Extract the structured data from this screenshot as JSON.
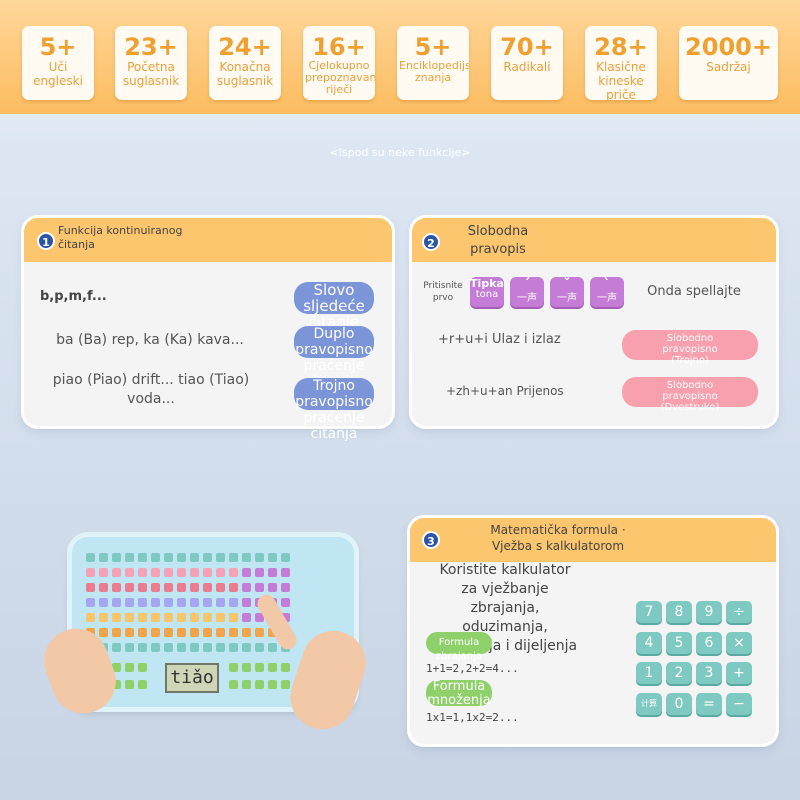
{
  "stats": [
    {
      "num": "5+",
      "label": "Uči engleski"
    },
    {
      "num": "23+",
      "label": "Početna suglasnik"
    },
    {
      "num": "24+",
      "label": "Konačna suglasnik"
    },
    {
      "num": "16+",
      "label": "Cjelokupno prepoznavanje riječi"
    },
    {
      "num": "5+",
      "label": "Enciklopedijsko znanja"
    },
    {
      "num": "70+",
      "label": "Radikali"
    },
    {
      "num": "28+",
      "label": "Klasične kineske priče"
    },
    {
      "num": "2000+",
      "label": "Sadržaj"
    }
  ],
  "caption": "<Ispod su neke funkcije>",
  "card1": {
    "number": "1",
    "title": "Funkcija kontinuiranog čitanja",
    "rows": [
      "b,p,m,f...",
      "ba (Ba) rep, ka (Ka) kava...",
      "piao (Piao) drift... tiao (Tiao) voda..."
    ],
    "buttons": [
      "Slovo sljedeće čitanje",
      "Duplo pravopisno praćenje čitanja",
      "Trojno pravopisno praćenje čitanja"
    ]
  },
  "card2": {
    "number": "2",
    "title": "Slobodna pravopis",
    "press_first": "Pritisnite prvo",
    "tones": [
      {
        "mark": "Tipka",
        "label": "tona"
      },
      {
        "mark": "ˊ",
        "label": "一声"
      },
      {
        "mark": "ˇ",
        "label": "一声"
      },
      {
        "mark": "ˋ",
        "label": "一声"
      }
    ],
    "then": "Onda spellajte",
    "rows": [
      "+r+u+i Ulaz i izlaz",
      "+zh+u+an Prijenos"
    ],
    "buttons": [
      "Slobodno pravopisno (Trojno)",
      "Slobodno pravopisno (Dvostruko)"
    ]
  },
  "card3": {
    "number": "3",
    "title": "Matematička formula · Vježba s kalkulatorom",
    "desc": "Koristite kalkulator za vježbanje zbrajanja, oduzimanja, množenja i dijeljenja",
    "btn1": "Formula zbrajanja",
    "formula1": "1+1=2,2+2=4...",
    "btn2": "Formula množenja",
    "formula2": "1x1=1,1x2=2...",
    "keys": [
      "7",
      "8",
      "9",
      "÷",
      "4",
      "5",
      "6",
      "×",
      "1",
      "2",
      "3",
      "+",
      "计算",
      "0",
      "=",
      "−"
    ]
  },
  "device": {
    "screen_text": "tiǎo"
  }
}
